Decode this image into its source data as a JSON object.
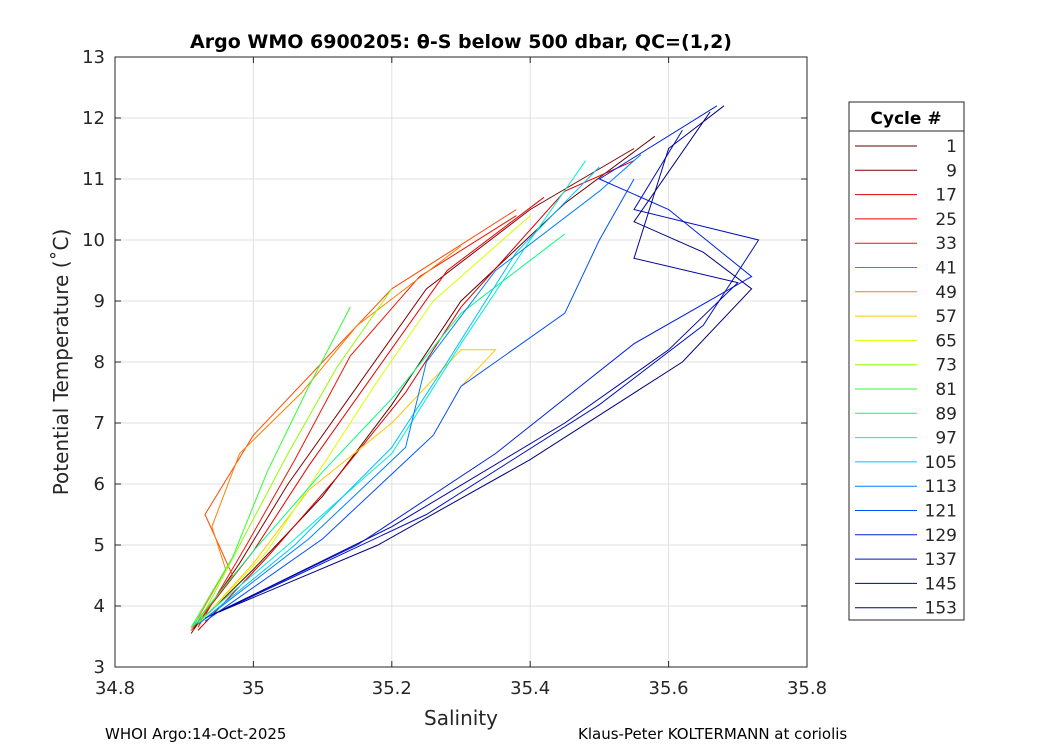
{
  "chart_data": {
    "type": "line",
    "title": "Argo WMO 6900205: θ-S below 500 dbar,  QC=(1,2)",
    "xlabel": "Salinity",
    "ylabel": "Potential Temperature (˚C)",
    "xlim": [
      34.8,
      35.8
    ],
    "ylim": [
      3,
      13
    ],
    "xticks": [
      "34.8",
      "35",
      "35.2",
      "35.4",
      "35.6",
      "35.8"
    ],
    "xtick_values": [
      34.8,
      35.0,
      35.2,
      35.4,
      35.6,
      35.8
    ],
    "yticks": [
      "3",
      "4",
      "5",
      "6",
      "7",
      "8",
      "9",
      "10",
      "11",
      "12",
      "13"
    ],
    "ytick_values": [
      3,
      4,
      5,
      6,
      7,
      8,
      9,
      10,
      11,
      12,
      13
    ],
    "grid": true,
    "legend_title": "Cycle #",
    "legend_placement": "right-outside",
    "series": [
      {
        "name": "1",
        "color": "#600000",
        "points": [
          [
            34.91,
            3.6
          ],
          [
            35.0,
            4.6
          ],
          [
            35.1,
            5.8
          ],
          [
            35.2,
            7.3
          ],
          [
            35.3,
            9.0
          ],
          [
            35.45,
            10.6
          ],
          [
            35.58,
            11.7
          ]
        ]
      },
      {
        "name": "9",
        "color": "#800000",
        "points": [
          [
            34.91,
            3.55
          ],
          [
            34.98,
            4.7
          ],
          [
            35.05,
            6.0
          ],
          [
            35.15,
            7.6
          ],
          [
            35.25,
            9.2
          ],
          [
            35.4,
            10.5
          ],
          [
            35.55,
            11.5
          ]
        ]
      },
      {
        "name": "17",
        "color": "#d80000",
        "points": [
          [
            34.92,
            3.6
          ],
          [
            35.02,
            4.8
          ],
          [
            35.12,
            6.1
          ],
          [
            35.22,
            7.5
          ],
          [
            35.3,
            8.9
          ],
          [
            35.45,
            10.8
          ],
          [
            35.55,
            11.3
          ]
        ]
      },
      {
        "name": "25",
        "color": "#e80000",
        "points": [
          [
            34.91,
            3.6
          ],
          [
            35.0,
            4.9
          ],
          [
            35.08,
            6.3
          ],
          [
            35.18,
            7.9
          ],
          [
            35.28,
            9.5
          ],
          [
            35.42,
            10.7
          ]
        ]
      },
      {
        "name": "33",
        "color": "#f01400",
        "points": [
          [
            34.92,
            3.65
          ],
          [
            34.99,
            5.0
          ],
          [
            35.06,
            6.4
          ],
          [
            35.14,
            8.1
          ],
          [
            35.24,
            9.4
          ],
          [
            35.38,
            10.4
          ]
        ]
      },
      {
        "name": "41",
        "color": "#ff4800",
        "points": [
          [
            34.91,
            3.6
          ],
          [
            34.97,
            4.5
          ],
          [
            34.93,
            5.5
          ],
          [
            35.0,
            6.8
          ],
          [
            35.1,
            8.0
          ],
          [
            35.2,
            9.2
          ],
          [
            35.38,
            10.5
          ]
        ]
      },
      {
        "name": "49",
        "color": "#ff8000",
        "points": [
          [
            34.91,
            3.6
          ],
          [
            34.96,
            4.6
          ],
          [
            34.94,
            5.3
          ],
          [
            34.98,
            6.5
          ],
          [
            35.07,
            7.5
          ],
          [
            35.15,
            8.6
          ],
          [
            35.3,
            9.9
          ]
        ]
      },
      {
        "name": "57",
        "color": "#ffc800",
        "points": [
          [
            34.92,
            3.7
          ],
          [
            35.0,
            4.7
          ],
          [
            35.08,
            5.9
          ],
          [
            35.2,
            7.0
          ],
          [
            35.3,
            8.2
          ],
          [
            35.35,
            8.2
          ],
          [
            35.3,
            7.6
          ]
        ]
      },
      {
        "name": "65",
        "color": "#d8ff00",
        "points": [
          [
            34.92,
            3.7
          ],
          [
            35.02,
            4.9
          ],
          [
            35.1,
            6.3
          ],
          [
            35.18,
            7.7
          ],
          [
            35.26,
            9.0
          ],
          [
            35.4,
            10.4
          ]
        ]
      },
      {
        "name": "73",
        "color": "#90ff00",
        "points": [
          [
            34.92,
            3.7
          ],
          [
            34.98,
            5.0
          ],
          [
            35.05,
            6.5
          ],
          [
            35.12,
            7.9
          ],
          [
            35.2,
            9.2
          ]
        ]
      },
      {
        "name": "81",
        "color": "#30ff30",
        "points": [
          [
            34.91,
            3.65
          ],
          [
            34.97,
            4.8
          ],
          [
            35.02,
            6.2
          ],
          [
            35.08,
            7.6
          ],
          [
            35.14,
            8.9
          ]
        ]
      },
      {
        "name": "89",
        "color": "#00ff80",
        "points": [
          [
            34.91,
            3.65
          ],
          [
            35.0,
            4.9
          ],
          [
            35.1,
            6.2
          ],
          [
            35.2,
            7.4
          ],
          [
            35.3,
            8.8
          ],
          [
            35.45,
            10.1
          ]
        ]
      },
      {
        "name": "97",
        "color": "#00f0d0",
        "points": [
          [
            34.91,
            3.65
          ],
          [
            35.05,
            5.0
          ],
          [
            35.2,
            6.5
          ],
          [
            35.3,
            8.3
          ],
          [
            35.4,
            10.0
          ],
          [
            35.48,
            11.3
          ]
        ]
      },
      {
        "name": "105",
        "color": "#00c0ff",
        "points": [
          [
            34.92,
            3.7
          ],
          [
            35.06,
            5.0
          ],
          [
            35.2,
            6.6
          ],
          [
            35.28,
            8.0
          ],
          [
            35.38,
            9.8
          ],
          [
            35.5,
            11.2
          ]
        ]
      },
      {
        "name": "113",
        "color": "#0080ff",
        "points": [
          [
            34.92,
            3.7
          ],
          [
            35.08,
            5.1
          ],
          [
            35.22,
            6.6
          ],
          [
            35.25,
            8.0
          ],
          [
            35.35,
            9.5
          ],
          [
            35.5,
            10.8
          ],
          [
            35.56,
            11.4
          ]
        ]
      },
      {
        "name": "121",
        "color": "#0050ff",
        "points": [
          [
            34.93,
            3.75
          ],
          [
            35.1,
            5.1
          ],
          [
            35.26,
            6.8
          ],
          [
            35.3,
            7.6
          ],
          [
            35.45,
            8.8
          ],
          [
            35.5,
            10.0
          ],
          [
            35.55,
            11.0
          ]
        ]
      },
      {
        "name": "129",
        "color": "#0020e0",
        "points": [
          [
            34.93,
            3.8
          ],
          [
            35.15,
            5.0
          ],
          [
            35.35,
            6.5
          ],
          [
            35.55,
            8.3
          ],
          [
            35.72,
            9.4
          ],
          [
            35.6,
            10.5
          ],
          [
            35.5,
            11.0
          ],
          [
            35.67,
            12.2
          ]
        ]
      },
      {
        "name": "137",
        "color": "#0010c0",
        "points": [
          [
            34.95,
            3.9
          ],
          [
            35.25,
            5.5
          ],
          [
            35.5,
            7.3
          ],
          [
            35.65,
            8.6
          ],
          [
            35.73,
            10.0
          ],
          [
            35.55,
            10.5
          ],
          [
            35.62,
            11.8
          ]
        ]
      },
      {
        "name": "145",
        "color": "#0000a0",
        "points": [
          [
            34.94,
            3.85
          ],
          [
            35.2,
            5.3
          ],
          [
            35.45,
            7.0
          ],
          [
            35.6,
            8.2
          ],
          [
            35.7,
            9.3
          ],
          [
            35.55,
            9.7
          ],
          [
            35.6,
            11.5
          ],
          [
            35.68,
            12.2
          ]
        ]
      },
      {
        "name": "153",
        "color": "#000080",
        "points": [
          [
            34.95,
            3.9
          ],
          [
            35.18,
            5.0
          ],
          [
            35.4,
            6.4
          ],
          [
            35.62,
            8.0
          ],
          [
            35.72,
            9.2
          ],
          [
            35.65,
            9.8
          ],
          [
            35.55,
            10.3
          ],
          [
            35.66,
            12.1
          ]
        ]
      }
    ]
  },
  "footer": {
    "left": "WHOI Argo:14-Oct-2025",
    "right": "Klaus-Peter KOLTERMANN at coriolis"
  }
}
